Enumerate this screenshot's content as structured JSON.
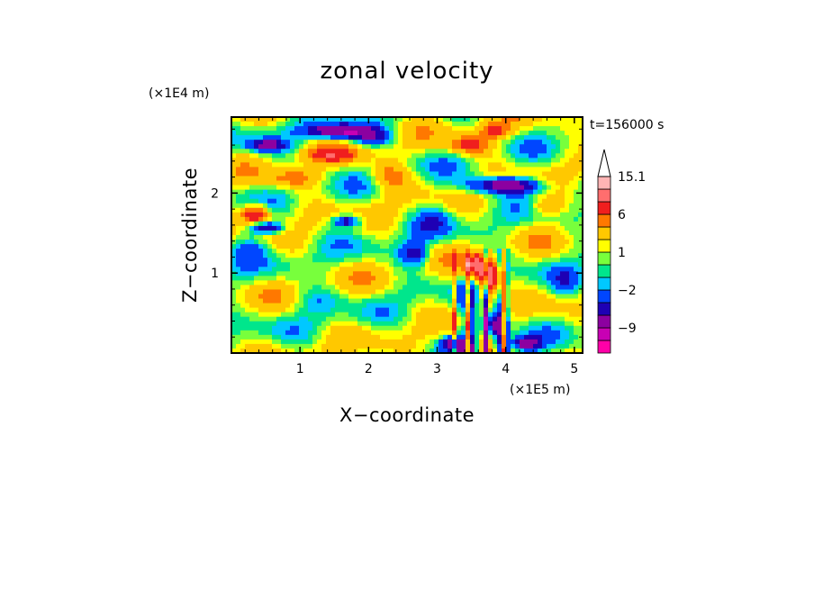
{
  "chart_data": {
    "type": "heatmap",
    "title": "zonal velocity",
    "xlabel": "X−coordinate",
    "ylabel": "Z−coordinate",
    "x_multiplier": "(×1E5 m)",
    "y_multiplier": "(×1E4 m)",
    "time_label": "t=156000 s",
    "xlim": [
      0,
      5.12
    ],
    "ylim": [
      0,
      2.95
    ],
    "x_ticks": [
      "1",
      "2",
      "3",
      "4",
      "5"
    ],
    "x_tick_values": [
      1,
      2,
      3,
      4,
      5
    ],
    "y_ticks": [
      "1",
      "2"
    ],
    "y_tick_values": [
      1,
      2
    ],
    "colorbar": {
      "levels": [
        -16,
        -12,
        -9,
        -6,
        -4,
        -2,
        -1,
        0,
        1,
        2,
        4,
        6,
        9,
        12,
        15.1
      ],
      "colors": [
        "#ff00a8",
        "#c800b4",
        "#8c00a0",
        "#1e00b4",
        "#0046ff",
        "#00c8ff",
        "#00e68c",
        "#78ff3c",
        "#ffff00",
        "#ffc800",
        "#ff7800",
        "#f01e1e",
        "#ff6e6e",
        "#ffb4b4"
      ],
      "max_arrow_color": "#ffffff",
      "tick_labels": [
        "15.1",
        "6",
        "1",
        "−2",
        "−9"
      ],
      "tick_values": [
        15.1,
        6,
        1,
        -2,
        -9
      ]
    }
  }
}
